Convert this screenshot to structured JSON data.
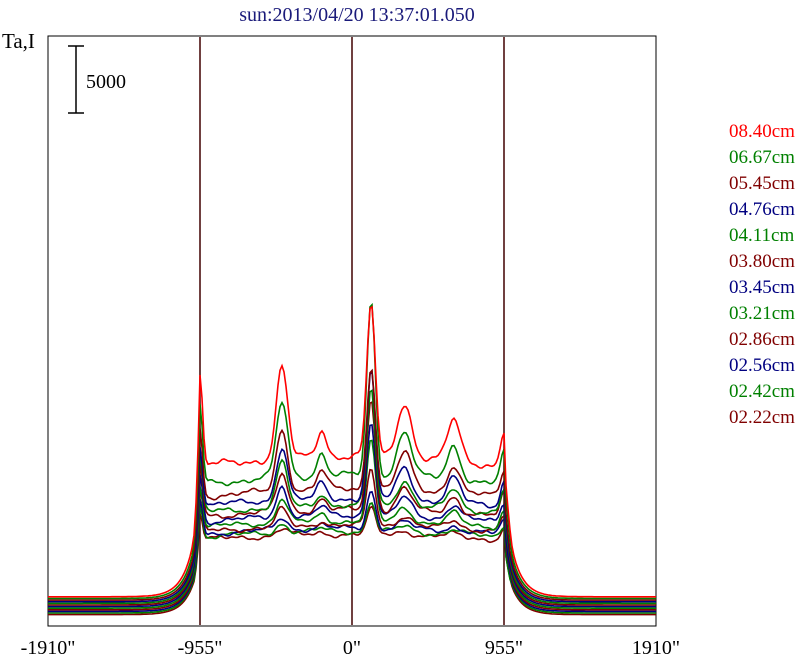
{
  "chart_data": {
    "type": "line",
    "title": "sun:2013/04/20 13:37:01.050",
    "ylabel": "Ta,I",
    "xlabel": "",
    "x_ticks": [
      "-1910\"",
      "-955\"",
      "0\"",
      "955\"",
      "1910\""
    ],
    "x_tick_values": [
      -1910,
      -955,
      0,
      955,
      1910
    ],
    "xlim": [
      -1910,
      1910
    ],
    "vertical_lines": [
      -955,
      0,
      955
    ],
    "scale_bar": {
      "label": "5000",
      "value": 5000
    },
    "grid": false,
    "legend_placement": "right",
    "series": [
      {
        "name": "08.40cm",
        "color": "#ff0000",
        "offset": 1210,
        "disk": 10500,
        "limb_peak": 6600,
        "center_peak": 11400,
        "active_peak": 6800
      },
      {
        "name": "06.67cm",
        "color": "#008000",
        "offset": 1080,
        "disk": 9200,
        "limb_peak": 5800,
        "center_peak": 13000,
        "active_peak": 5600
      },
      {
        "name": "05.45cm",
        "color": "#800000",
        "offset": 960,
        "disk": 8300,
        "limb_peak": 5000,
        "center_peak": 9300,
        "active_peak": 4600
      },
      {
        "name": "04.76cm",
        "color": "#000080",
        "offset": 840,
        "disk": 7700,
        "limb_peak": 4600,
        "center_peak": 9500,
        "active_peak": 4000
      },
      {
        "name": "04.11cm",
        "color": "#008000",
        "offset": 720,
        "disk": 7300,
        "limb_peak": 4200,
        "center_peak": 8700,
        "active_peak": 3300
      },
      {
        "name": "03.80cm",
        "color": "#800000",
        "offset": 600,
        "disk": 7100,
        "limb_peak": 4000,
        "center_peak": 8200,
        "active_peak": 2800
      },
      {
        "name": "03.45cm",
        "color": "#000080",
        "offset": 480,
        "disk": 6800,
        "limb_peak": 3600,
        "center_peak": 7100,
        "active_peak": 2300
      },
      {
        "name": "03.21cm",
        "color": "#008000",
        "offset": 360,
        "disk": 6500,
        "limb_peak": 3200,
        "center_peak": 6000,
        "active_peak": 1800
      },
      {
        "name": "02.86cm",
        "color": "#800000",
        "offset": 240,
        "disk": 6300,
        "limb_peak": 2900,
        "center_peak": 4300,
        "active_peak": 1300
      },
      {
        "name": "02.56cm",
        "color": "#000080",
        "offset": 120,
        "disk": 6200,
        "limb_peak": 2600,
        "center_peak": 2900,
        "active_peak": 900
      },
      {
        "name": "02.42cm",
        "color": "#008000",
        "offset": 0,
        "disk": 6100,
        "limb_peak": 2300,
        "center_peak": 2300,
        "active_peak": 700
      },
      {
        "name": "02.22cm",
        "color": "#800000",
        "offset": -120,
        "disk": 6000,
        "limb_peak": 2000,
        "center_peak": 1900,
        "active_peak": 500
      }
    ]
  }
}
